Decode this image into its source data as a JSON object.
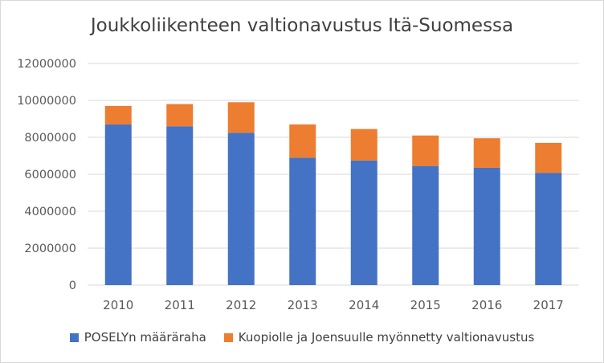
{
  "chart_data": {
    "type": "bar",
    "stacked": true,
    "title": "Joukkoliikenteen valtionavustus Itä-Suomessa",
    "xlabel": "",
    "ylabel": "",
    "categories": [
      "2010",
      "2011",
      "2012",
      "2013",
      "2014",
      "2015",
      "2016",
      "2017"
    ],
    "series": [
      {
        "name": "POSELYn määräraha",
        "color": "#4472c4",
        "values": [
          8700000,
          8600000,
          8250000,
          6900000,
          6750000,
          6450000,
          6350000,
          6080000
        ]
      },
      {
        "name": "Kuopiolle ja Joensuulle myönnetty valtionavustus",
        "color": "#ed7d31",
        "values": [
          1000000,
          1200000,
          1650000,
          1800000,
          1700000,
          1650000,
          1600000,
          1620000
        ]
      }
    ],
    "ylim": [
      0,
      12000000
    ],
    "yticks": [
      "0",
      "2000000",
      "4000000",
      "6000000",
      "8000000",
      "10000000",
      "12000000"
    ],
    "grid": true,
    "legend_position": "bottom"
  }
}
